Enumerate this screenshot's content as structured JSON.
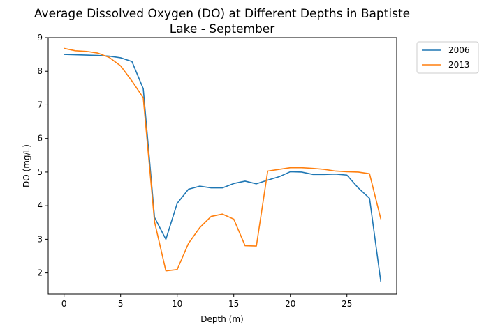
{
  "chart_data": {
    "type": "line",
    "title": "Average Dissolved Oxygen (DO) at Different Depths in Baptiste Lake - September",
    "title_lines": [
      "Average Dissolved Oxygen (DO) at Different Depths in Baptiste",
      "Lake - September"
    ],
    "xlabel": "Depth (m)",
    "ylabel": "DO (mg/L)",
    "xlim": [
      -1.4,
      29.4
    ],
    "ylim": [
      1.37,
      9.0
    ],
    "xticks": [
      0,
      5,
      10,
      15,
      20,
      25
    ],
    "yticks": [
      2,
      3,
      4,
      5,
      6,
      7,
      8,
      9
    ],
    "grid": false,
    "legend_position": "outside-top-right",
    "series": [
      {
        "name": "2006",
        "color": "#1f77b4",
        "x": [
          0,
          1,
          2,
          3,
          4,
          5,
          6,
          7,
          8,
          9,
          10,
          11,
          12,
          13,
          14,
          15,
          16,
          17,
          18,
          19,
          20,
          21,
          22,
          23,
          24,
          25,
          26,
          27,
          28
        ],
        "y": [
          8.5,
          8.49,
          8.48,
          8.47,
          8.45,
          8.4,
          8.29,
          7.48,
          3.65,
          3.0,
          4.07,
          4.49,
          4.58,
          4.53,
          4.53,
          4.66,
          4.73,
          4.65,
          4.76,
          4.86,
          5.01,
          5.0,
          4.93,
          4.93,
          4.94,
          4.91,
          4.53,
          4.22,
          1.73
        ]
      },
      {
        "name": "2013",
        "color": "#ff7f0e",
        "x": [
          0,
          1,
          2,
          3,
          4,
          5,
          6,
          7,
          8,
          9,
          10,
          11,
          12,
          13,
          14,
          15,
          16,
          17,
          18,
          19,
          20,
          21,
          22,
          23,
          24,
          25,
          26,
          27,
          28
        ],
        "y": [
          8.68,
          8.61,
          8.59,
          8.54,
          8.41,
          8.16,
          7.71,
          7.21,
          3.52,
          2.06,
          2.1,
          2.88,
          3.35,
          3.68,
          3.75,
          3.6,
          2.81,
          2.8,
          5.03,
          5.08,
          5.13,
          5.13,
          5.11,
          5.08,
          5.03,
          5.01,
          5.0,
          4.95,
          3.6
        ]
      }
    ]
  }
}
